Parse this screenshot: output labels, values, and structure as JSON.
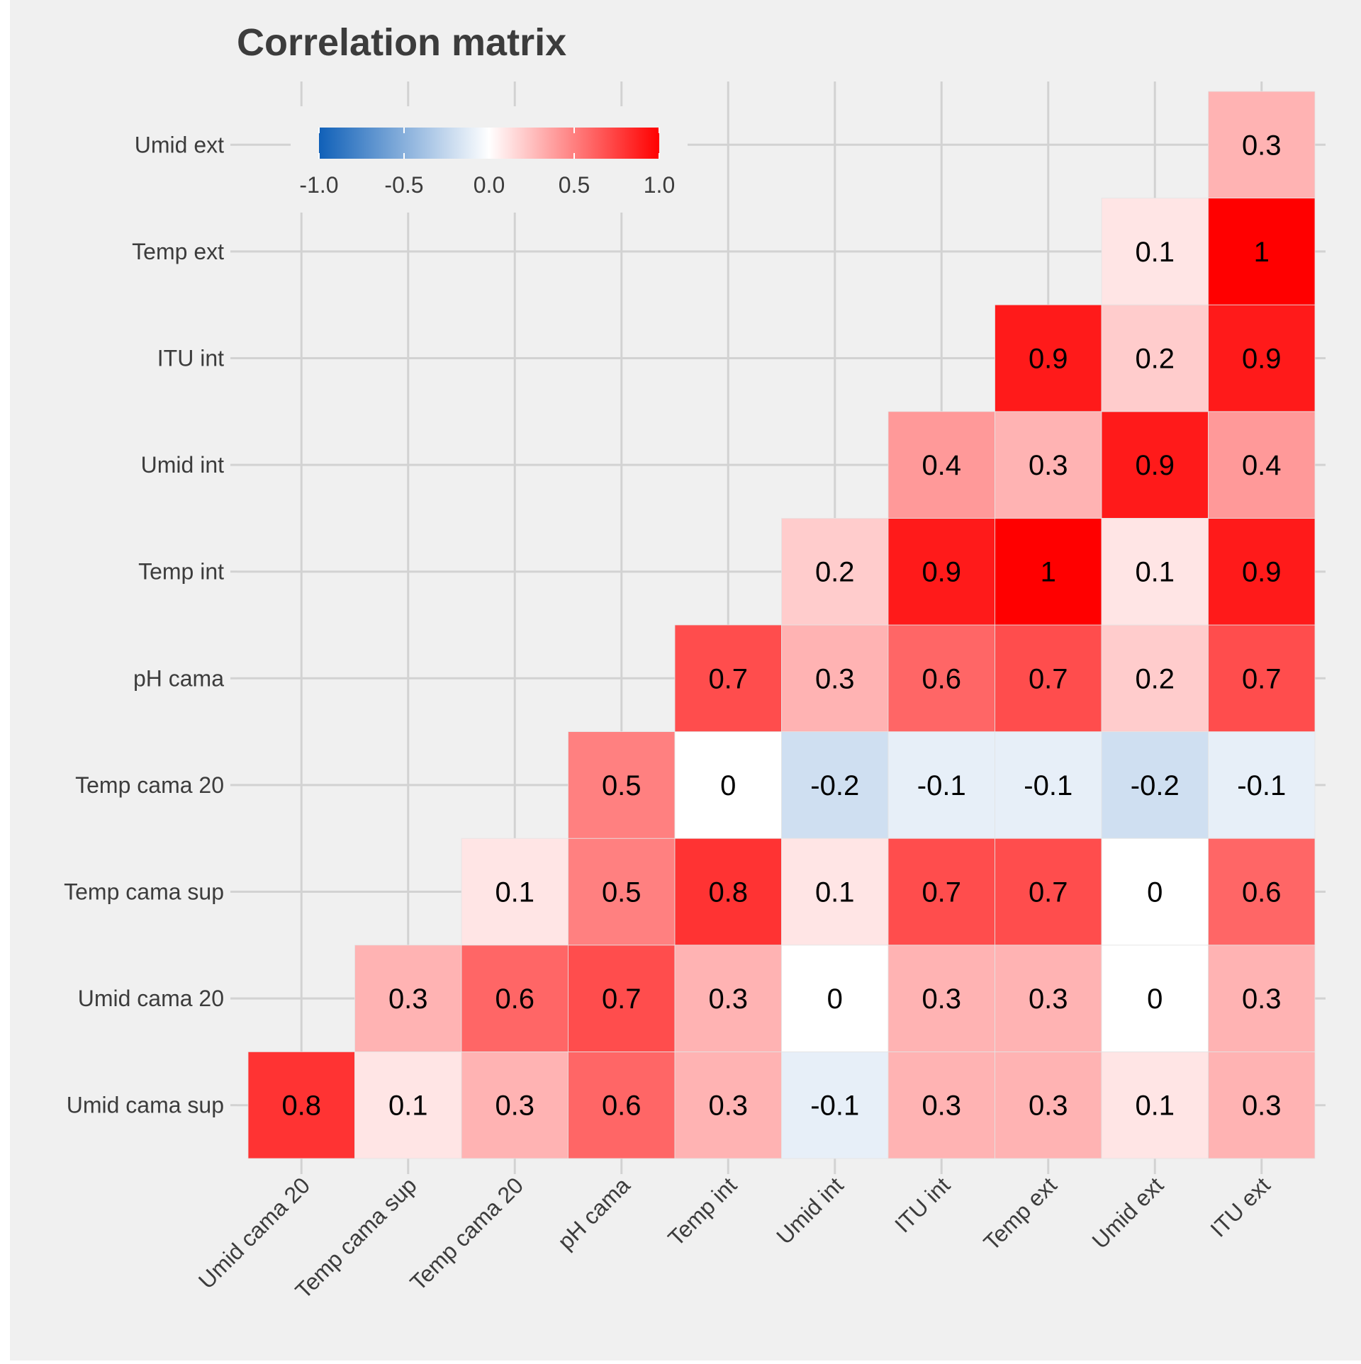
{
  "chart_data": {
    "type": "heatmap",
    "title": "Correlation matrix",
    "x_categories": [
      "Umid cama 20",
      "Temp cama sup",
      "Temp cama 20",
      "pH cama",
      "Temp int",
      "Umid int",
      "ITU int",
      "Temp ext",
      "Umid ext",
      "ITU ext"
    ],
    "y_categories": [
      "Umid cama sup",
      "Umid cama 20",
      "Temp cama sup",
      "Temp cama 20",
      "pH cama",
      "Temp int",
      "Umid int",
      "ITU int",
      "Temp ext",
      "Umid ext"
    ],
    "values": [
      [
        0.8,
        0.1,
        0.3,
        0.6,
        0.3,
        -0.1,
        0.3,
        0.3,
        0.1,
        0.3
      ],
      [
        null,
        0.3,
        0.6,
        0.7,
        0.3,
        0,
        0.3,
        0.3,
        0,
        0.3
      ],
      [
        null,
        null,
        0.1,
        0.5,
        0.8,
        0.1,
        0.7,
        0.7,
        0,
        0.6
      ],
      [
        null,
        null,
        null,
        0.5,
        0,
        -0.2,
        -0.1,
        -0.1,
        -0.2,
        -0.1
      ],
      [
        null,
        null,
        null,
        null,
        0.7,
        0.3,
        0.6,
        0.7,
        0.2,
        0.7
      ],
      [
        null,
        null,
        null,
        null,
        null,
        0.2,
        0.9,
        1,
        0.1,
        0.9
      ],
      [
        null,
        null,
        null,
        null,
        null,
        null,
        0.4,
        0.3,
        0.9,
        0.4
      ],
      [
        null,
        null,
        null,
        null,
        null,
        null,
        null,
        0.9,
        0.2,
        0.9
      ],
      [
        null,
        null,
        null,
        null,
        null,
        null,
        null,
        null,
        0.1,
        1
      ],
      [
        null,
        null,
        null,
        null,
        null,
        null,
        null,
        null,
        null,
        0.3
      ]
    ],
    "colorbar": {
      "min": -1.0,
      "max": 1.0,
      "ticks": [
        "-1.0",
        "-0.5",
        "0.0",
        "0.5",
        "1.0"
      ],
      "colors": [
        "#1060b8",
        "#ffffff",
        "#ff0000"
      ],
      "placement": "top-left"
    },
    "grid": true,
    "colors": {
      "background": "#f0f0f0",
      "grid": "#d2d2d2",
      "title": "#3c3c3c",
      "axis_text": "#3c3c3c",
      "cell_text": "#000000"
    }
  }
}
